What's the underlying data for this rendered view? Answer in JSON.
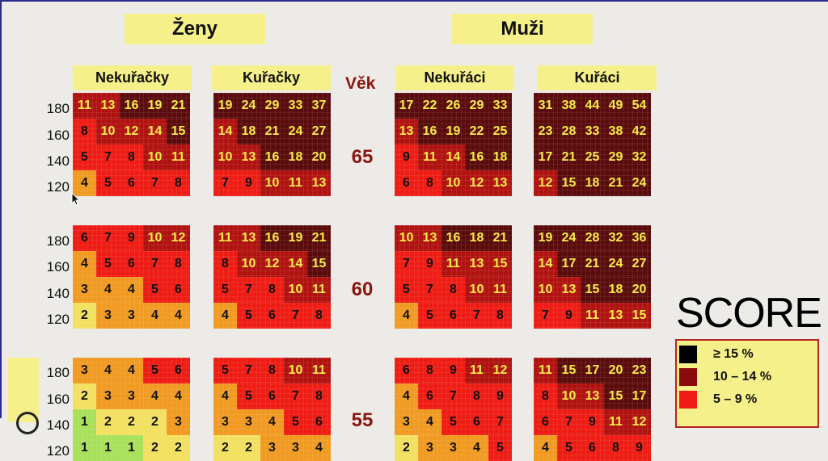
{
  "headers": {
    "women": "Ženy",
    "men": "Muži",
    "age_label": "Věk"
  },
  "groups": [
    "Nekuřačky",
    "Kuřačky",
    "Nekuřáci",
    "Kuřáci"
  ],
  "bp_labels": [
    "180",
    "160",
    "140",
    "120"
  ],
  "bands": [
    {
      "age": "65",
      "tables": [
        {
          "values": [
            [
              11,
              13,
              16,
              19,
              21
            ],
            [
              8,
              10,
              12,
              14,
              15
            ],
            [
              5,
              7,
              8,
              10,
              11
            ],
            [
              4,
              5,
              6,
              7,
              8
            ]
          ],
          "levels": [
            [
              4,
              4,
              5,
              5,
              5
            ],
            [
              3,
              4,
              4,
              4,
              5
            ],
            [
              3,
              3,
              3,
              4,
              4
            ],
            [
              2,
              3,
              3,
              3,
              3
            ]
          ]
        },
        {
          "values": [
            [
              19,
              24,
              29,
              33,
              37
            ],
            [
              14,
              18,
              21,
              24,
              27
            ],
            [
              10,
              13,
              16,
              18,
              20
            ],
            [
              7,
              9,
              10,
              11,
              13
            ]
          ],
          "levels": [
            [
              5,
              5,
              5,
              5,
              5
            ],
            [
              4,
              5,
              5,
              5,
              5
            ],
            [
              4,
              4,
              5,
              5,
              5
            ],
            [
              3,
              3,
              4,
              4,
              4
            ]
          ]
        },
        {
          "values": [
            [
              17,
              22,
              26,
              29,
              33
            ],
            [
              13,
              16,
              19,
              22,
              25
            ],
            [
              9,
              11,
              14,
              16,
              18
            ],
            [
              6,
              8,
              10,
              12,
              13
            ]
          ],
          "levels": [
            [
              5,
              5,
              5,
              5,
              5
            ],
            [
              4,
              5,
              5,
              5,
              5
            ],
            [
              3,
              4,
              4,
              5,
              5
            ],
            [
              3,
              3,
              4,
              4,
              4
            ]
          ]
        },
        {
          "values": [
            [
              31,
              38,
              44,
              49,
              54
            ],
            [
              23,
              28,
              33,
              38,
              42
            ],
            [
              17,
              21,
              25,
              29,
              32
            ],
            [
              12,
              15,
              18,
              21,
              24
            ]
          ],
          "levels": [
            [
              5,
              5,
              5,
              5,
              5
            ],
            [
              5,
              5,
              5,
              5,
              5
            ],
            [
              5,
              5,
              5,
              5,
              5
            ],
            [
              4,
              5,
              5,
              5,
              5
            ]
          ]
        }
      ]
    },
    {
      "age": "60",
      "tables": [
        {
          "values": [
            [
              6,
              7,
              9,
              10,
              12
            ],
            [
              4,
              5,
              6,
              7,
              8
            ],
            [
              3,
              4,
              4,
              5,
              6
            ],
            [
              2,
              3,
              3,
              4,
              4
            ]
          ],
          "levels": [
            [
              3,
              3,
              3,
              4,
              4
            ],
            [
              2,
              3,
              3,
              3,
              3
            ],
            [
              2,
              2,
              2,
              3,
              3
            ],
            [
              1,
              2,
              2,
              2,
              2
            ]
          ]
        },
        {
          "values": [
            [
              11,
              13,
              16,
              19,
              21
            ],
            [
              8,
              10,
              12,
              14,
              15
            ],
            [
              5,
              7,
              8,
              10,
              11
            ],
            [
              4,
              5,
              6,
              7,
              8
            ]
          ],
          "levels": [
            [
              4,
              4,
              5,
              5,
              5
            ],
            [
              3,
              4,
              4,
              4,
              5
            ],
            [
              3,
              3,
              3,
              4,
              4
            ],
            [
              2,
              3,
              3,
              3,
              3
            ]
          ]
        },
        {
          "values": [
            [
              10,
              13,
              16,
              18,
              21
            ],
            [
              7,
              9,
              11,
              13,
              15
            ],
            [
              5,
              7,
              8,
              10,
              11
            ],
            [
              4,
              5,
              6,
              7,
              8
            ]
          ],
          "levels": [
            [
              4,
              4,
              5,
              5,
              5
            ],
            [
              3,
              3,
              4,
              4,
              4
            ],
            [
              3,
              3,
              3,
              4,
              4
            ],
            [
              2,
              3,
              3,
              3,
              3
            ]
          ]
        },
        {
          "values": [
            [
              19,
              24,
              28,
              32,
              36
            ],
            [
              14,
              17,
              21,
              24,
              27
            ],
            [
              10,
              13,
              15,
              18,
              20
            ],
            [
              7,
              9,
              11,
              13,
              15
            ]
          ],
          "levels": [
            [
              5,
              5,
              5,
              5,
              5
            ],
            [
              4,
              5,
              5,
              5,
              5
            ],
            [
              4,
              4,
              5,
              5,
              5
            ],
            [
              3,
              3,
              4,
              4,
              4
            ]
          ]
        }
      ]
    },
    {
      "age": "55",
      "tables": [
        {
          "values": [
            [
              3,
              4,
              4,
              5,
              6
            ],
            [
              2,
              3,
              3,
              4,
              4
            ],
            [
              1,
              2,
              2,
              2,
              3
            ],
            [
              1,
              1,
              1,
              2,
              2
            ]
          ],
          "levels": [
            [
              2,
              2,
              2,
              3,
              3
            ],
            [
              1,
              2,
              2,
              2,
              2
            ],
            [
              0,
              1,
              1,
              1,
              2
            ],
            [
              0,
              0,
              0,
              1,
              1
            ]
          ]
        },
        {
          "values": [
            [
              5,
              7,
              8,
              10,
              11
            ],
            [
              4,
              5,
              6,
              7,
              8
            ],
            [
              3,
              3,
              4,
              5,
              6
            ],
            [
              2,
              2,
              3,
              3,
              4
            ]
          ],
          "levels": [
            [
              3,
              3,
              3,
              4,
              4
            ],
            [
              2,
              3,
              3,
              3,
              3
            ],
            [
              2,
              2,
              2,
              3,
              3
            ],
            [
              1,
              1,
              2,
              2,
              2
            ]
          ]
        },
        {
          "values": [
            [
              6,
              8,
              9,
              11,
              12
            ],
            [
              4,
              6,
              7,
              8,
              9
            ],
            [
              3,
              4,
              5,
              6,
              7
            ],
            [
              2,
              3,
              3,
              4,
              5
            ]
          ],
          "levels": [
            [
              3,
              3,
              3,
              4,
              4
            ],
            [
              2,
              3,
              3,
              3,
              3
            ],
            [
              2,
              2,
              3,
              3,
              3
            ],
            [
              1,
              2,
              2,
              2,
              3
            ]
          ]
        },
        {
          "values": [
            [
              11,
              15,
              17,
              20,
              23
            ],
            [
              8,
              10,
              13,
              15,
              17
            ],
            [
              6,
              7,
              9,
              11,
              12
            ],
            [
              4,
              5,
              6,
              8,
              9
            ]
          ],
          "levels": [
            [
              4,
              5,
              5,
              5,
              5
            ],
            [
              3,
              4,
              4,
              5,
              5
            ],
            [
              3,
              3,
              3,
              4,
              4
            ],
            [
              2,
              3,
              3,
              3,
              3
            ]
          ]
        }
      ]
    }
  ],
  "legend": {
    "title": "SCORE",
    "items": [
      {
        "label": "≥ 15 %",
        "color": "#000000"
      },
      {
        "label": "10 – 14 %",
        "color": "#8a0b0b"
      },
      {
        "label": "5 – 9 %",
        "color": "#ee1c14"
      }
    ]
  },
  "palette": [
    "#a8e05a",
    "#f2e060",
    "#f09a22",
    "#ee1c14",
    "#b0120f",
    "#5a0b0b"
  ]
}
